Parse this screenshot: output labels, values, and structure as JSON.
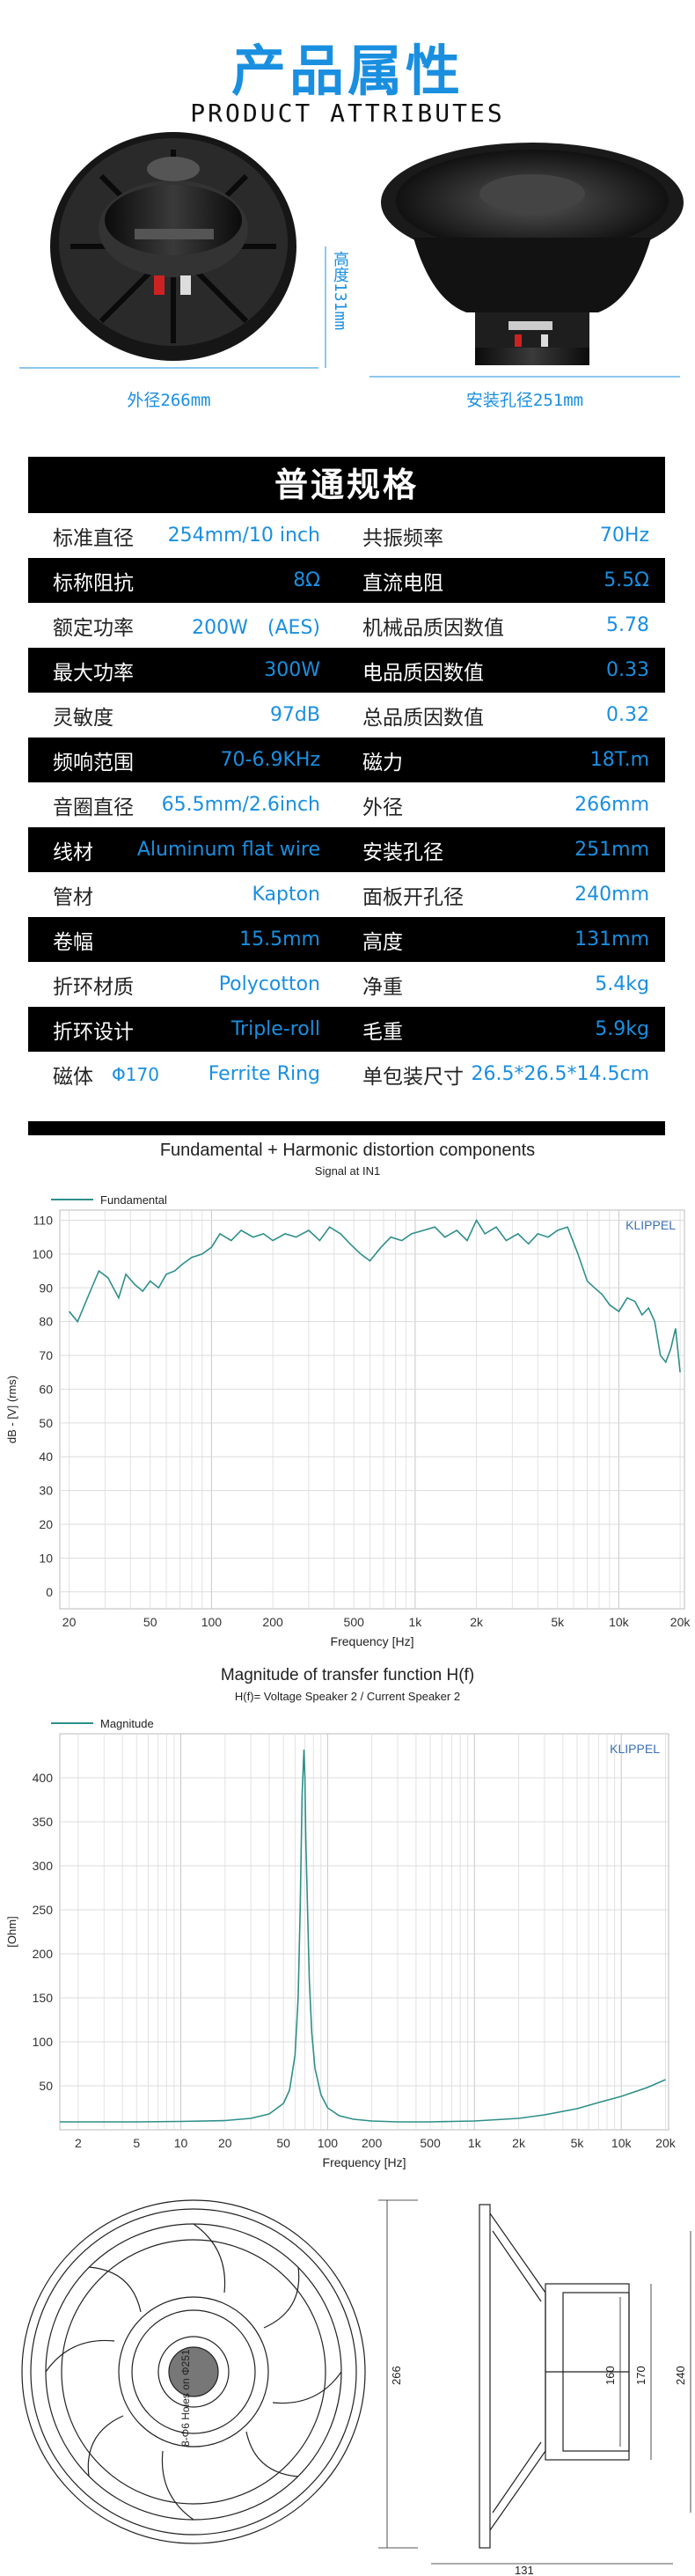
{
  "header": {
    "title_cn": "产品属性",
    "title_en": "PRODUCT ATTRIBUTES"
  },
  "photos": {
    "outer_diameter": "外径266mm",
    "height": "高度131mm",
    "mount_hole": "安装孔径251mm"
  },
  "specs": {
    "title": "普通规格",
    "rows": [
      {
        "l1": "标准直径",
        "v1": "254mm/10 inch",
        "l2": "共振频率",
        "v2": "70Hz"
      },
      {
        "l1": "标称阻抗",
        "v1": "8Ω",
        "l2": "直流电阻",
        "v2": "5.5Ω"
      },
      {
        "l1": "额定功率",
        "v1": "200W　(AES)",
        "l2": "机械品质因数值",
        "v2": "5.78"
      },
      {
        "l1": "最大功率",
        "v1": "300W",
        "l2": "电品质因数值",
        "v2": "0.33"
      },
      {
        "l1": "灵敏度",
        "v1": "97dB",
        "l2": "总品质因数值",
        "v2": "0.32"
      },
      {
        "l1": "频响范围",
        "v1": "70-6.9KHz",
        "l2": "磁力",
        "v2": "18T.m"
      },
      {
        "l1": "音圈直径",
        "v1": "65.5mm/2.6inch",
        "l2": "外径",
        "v2": "266mm"
      },
      {
        "l1": "线材",
        "v1": "Aluminum flat wire",
        "l2": "安装孔径",
        "v2": "251mm"
      },
      {
        "l1": "管材",
        "v1": "Kapton",
        "l2": "面板开孔径",
        "v2": "240mm"
      },
      {
        "l1": "卷幅",
        "v1": "15.5mm",
        "l2": "高度",
        "v2": "131mm"
      },
      {
        "l1": "折环材质",
        "v1": "Polycotton",
        "l2": "净重",
        "v2": "5.4kg"
      },
      {
        "l1": "折环设计",
        "v1": "Triple-roll",
        "l2": "毛重",
        "v2": "5.9kg"
      },
      {
        "l1": "磁体",
        "pre": "Φ170",
        "v1": "Ferrite Ring",
        "l2": "单包装尺寸",
        "v2": "26.5*26.5*14.5cm"
      }
    ]
  },
  "chart_data": [
    {
      "type": "line",
      "title": "Fundamental + Harmonic distortion components",
      "subtitle": "Signal at IN1",
      "ylabel": "dB - [V] (rms)",
      "xlabel": "Frequency [Hz]",
      "brand": "KLIPPEL",
      "xscale": "log",
      "xlim": [
        18,
        21000
      ],
      "ylim": [
        -5,
        113
      ],
      "xticks": [
        20,
        50,
        100,
        200,
        500,
        1000,
        2000,
        5000,
        10000,
        20000
      ],
      "xtick_labels": [
        "20",
        "50",
        "100",
        "200",
        "500",
        "1k",
        "2k",
        "5k",
        "10k",
        "20k"
      ],
      "yticks": [
        0,
        10,
        20,
        30,
        40,
        50,
        60,
        70,
        80,
        90,
        100,
        110
      ],
      "grid": true,
      "legend": "top-left",
      "color": "#2e8f8a",
      "series": [
        {
          "name": "Fundamental",
          "x": [
            20,
            22,
            25,
            28,
            31,
            35,
            38,
            42,
            46,
            50,
            55,
            60,
            66,
            72,
            80,
            90,
            100,
            110,
            125,
            140,
            160,
            180,
            200,
            230,
            260,
            300,
            340,
            380,
            430,
            480,
            540,
            600,
            680,
            760,
            860,
            960,
            1100,
            1250,
            1400,
            1600,
            1800,
            2000,
            2200,
            2500,
            2800,
            3200,
            3600,
            4000,
            4500,
            5000,
            5600,
            6300,
            7000,
            7600,
            8300,
            9000,
            10000,
            11000,
            12000,
            13000,
            14000,
            15000,
            16000,
            17000,
            18000,
            19000,
            20000
          ],
          "y": [
            83,
            80,
            88,
            95,
            93,
            87,
            94,
            91,
            89,
            92,
            90,
            94,
            95,
            97,
            99,
            100,
            102,
            106,
            104,
            107,
            105,
            106,
            104,
            106,
            105,
            107,
            104,
            108,
            106,
            103,
            100,
            98,
            102,
            105,
            104,
            106,
            107,
            108,
            105,
            107,
            104,
            110,
            106,
            108,
            104,
            106,
            103,
            106,
            105,
            107,
            108,
            100,
            92,
            90,
            88,
            85,
            83,
            87,
            86,
            82,
            84,
            80,
            70,
            68,
            72,
            78,
            65
          ]
        }
      ]
    },
    {
      "type": "line",
      "title": "Magnitude of transfer function H(f)",
      "subtitle": "H(f)= Voltage Speaker 2 / Current Speaker 2",
      "ylabel": "[Ohm]",
      "xlabel": "Frequency [Hz]",
      "brand": "KLIPPEL",
      "xscale": "log",
      "xlim": [
        1.5,
        21000
      ],
      "ylim": [
        0,
        450
      ],
      "xticks": [
        2,
        5,
        10,
        20,
        50,
        100,
        200,
        500,
        1000,
        2000,
        5000,
        10000,
        20000
      ],
      "xtick_labels": [
        "2",
        "5",
        "10",
        "20",
        "50",
        "100",
        "200",
        "500",
        "1k",
        "2k",
        "5k",
        "10k",
        "20k"
      ],
      "yticks": [
        50,
        100,
        150,
        200,
        250,
        300,
        350,
        400
      ],
      "grid": true,
      "legend": "top-left",
      "color": "#2e8f8a",
      "series": [
        {
          "name": "Magnitude",
          "x": [
            1.5,
            5,
            10,
            20,
            30,
            40,
            50,
            55,
            60,
            63,
            65,
            67,
            69,
            70,
            71,
            73,
            75,
            78,
            82,
            90,
            100,
            120,
            150,
            200,
            300,
            500,
            700,
            1000,
            2000,
            3000,
            5000,
            7000,
            10000,
            15000,
            20000
          ],
          "y": [
            9,
            9,
            9.5,
            10.5,
            13,
            18,
            30,
            45,
            85,
            150,
            250,
            380,
            432,
            400,
            330,
            250,
            170,
            110,
            70,
            40,
            25,
            16,
            12,
            10,
            9,
            9,
            9.5,
            10,
            13,
            17,
            24,
            31,
            38,
            48,
            57
          ]
        }
      ]
    }
  ],
  "drawing": {
    "holes_label": "8-Φ6 Holes on Φ251",
    "dim_outer": "266",
    "dim_height": "131",
    "dim_160": "160",
    "dim_170": "170",
    "dim_240": "240"
  }
}
